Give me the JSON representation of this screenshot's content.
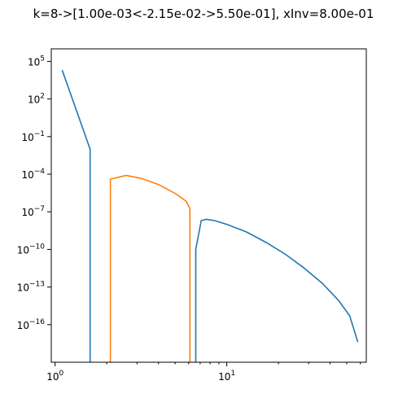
{
  "chart_data": {
    "type": "line",
    "title": "k=8->[1.00e-03<-2.15e-02->5.50e-01], xInv=8.00e-01",
    "xscale": "log",
    "yscale": "log",
    "xlim": [
      0.95,
      65
    ],
    "ylim": [
      1e-19,
      1000000.0
    ],
    "x_ticks": [
      {
        "value": 1,
        "label": "10",
        "exp": "0"
      },
      {
        "value": 10,
        "label": "10",
        "exp": "1"
      }
    ],
    "y_ticks": [
      {
        "value": 100000.0,
        "label": "10",
        "exp": "5"
      },
      {
        "value": 100.0,
        "label": "10",
        "exp": "2"
      },
      {
        "value": 0.1,
        "label": "10",
        "exp": "−1"
      },
      {
        "value": 0.0001,
        "label": "10",
        "exp": "−4"
      },
      {
        "value": 1e-07,
        "label": "10",
        "exp": "−7"
      },
      {
        "value": 1e-10,
        "label": "10",
        "exp": "−10"
      },
      {
        "value": 1e-13,
        "label": "10",
        "exp": "−13"
      },
      {
        "value": 1e-16,
        "label": "10",
        "exp": "−16"
      }
    ],
    "grid": false,
    "legend": "none",
    "colors": {
      "series1": "#1f77b4",
      "series2": "#ff7f0e"
    },
    "series": [
      {
        "color": "#1f77b4",
        "points": [
          [
            1.1,
            20000
          ],
          [
            1.6,
            0.01
          ],
          [
            1.6,
            1e-19
          ]
        ]
      },
      {
        "color": "#ff7f0e",
        "points": [
          [
            2.1,
            1e-19
          ],
          [
            2.1,
            4e-05
          ],
          [
            2.6,
            8e-05
          ],
          [
            3.2,
            4.5e-05
          ],
          [
            4.0,
            1.5e-05
          ],
          [
            5.0,
            3e-06
          ],
          [
            5.8,
            7e-07
          ],
          [
            6.1,
            1.8e-07
          ],
          [
            6.1,
            1e-19
          ]
        ]
      },
      {
        "color": "#1f77b4",
        "points": [
          [
            6.6,
            1e-19
          ],
          [
            6.6,
            1e-10
          ],
          [
            7.1,
            2e-08
          ],
          [
            7.6,
            2.5e-08
          ],
          [
            8.5,
            2e-08
          ],
          [
            10,
            1e-08
          ],
          [
            13,
            2.5e-09
          ],
          [
            17,
            3.5e-10
          ],
          [
            22,
            4e-11
          ],
          [
            28,
            3.5e-12
          ],
          [
            36,
            2e-13
          ],
          [
            45,
            8e-15
          ],
          [
            52,
            5e-16
          ],
          [
            58,
            4e-18
          ]
        ]
      }
    ]
  }
}
